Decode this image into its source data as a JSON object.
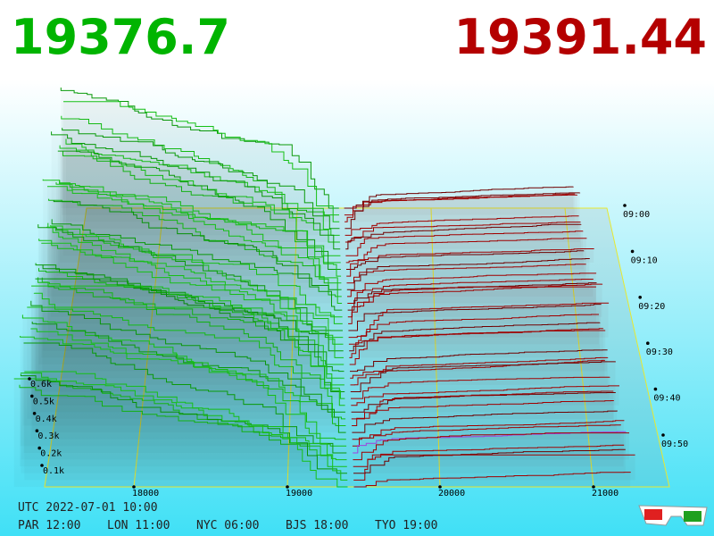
{
  "bid_price": "19376.7",
  "ask_price": "19391.44",
  "price_ticks": [
    "18000",
    "19000",
    "20000",
    "21000"
  ],
  "depth_ticks": [
    "0.1k",
    "0.2k",
    "0.3k",
    "0.4k",
    "0.5k",
    "0.6k"
  ],
  "time_ticks": [
    "09:00",
    "09:10",
    "09:20",
    "09:30",
    "09:40",
    "09:50"
  ],
  "footer": {
    "utc": "UTC 2022-07-01 10:00",
    "cities": [
      "PAR 12:00",
      "LON 11:00",
      "NYC 06:00",
      "BJS 18:00",
      "TYO 19:00"
    ]
  }
}
